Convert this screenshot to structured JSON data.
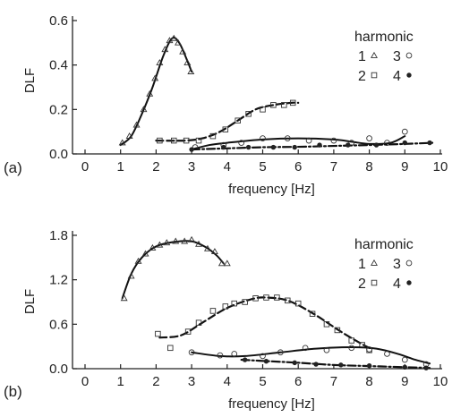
{
  "chart_data": [
    {
      "type": "scatter",
      "panel_label": "(a)",
      "xlabel": "frequency [Hz]",
      "ylabel": "DLF",
      "xlim": [
        0,
        10
      ],
      "ylim": [
        0,
        0.62
      ],
      "x_ticks": [
        0,
        1,
        2,
        3,
        4,
        5,
        6,
        7,
        8,
        9,
        10
      ],
      "y_ticks": [
        0.0,
        0.2,
        0.4,
        0.6
      ],
      "y_tick_labels": [
        "0.0",
        "0.2",
        "0.4",
        "0.6"
      ],
      "legend": {
        "title": "harmonic",
        "position": "top-right",
        "entries": [
          {
            "label": "1",
            "marker": "triangle"
          },
          {
            "label": "3",
            "marker": "open-circle"
          },
          {
            "label": "2",
            "marker": "open-square"
          },
          {
            "label": "4",
            "marker": "filled-circle"
          }
        ]
      },
      "series": [
        {
          "marker": "triangle",
          "line": "solid",
          "points": [
            [
              1.05,
              0.05
            ],
            [
              1.25,
              0.08
            ],
            [
              1.45,
              0.13
            ],
            [
              1.65,
              0.2
            ],
            [
              1.82,
              0.27
            ],
            [
              1.97,
              0.34
            ],
            [
              2.1,
              0.41
            ],
            [
              2.25,
              0.47
            ],
            [
              2.38,
              0.51
            ],
            [
              2.5,
              0.52
            ],
            [
              2.62,
              0.5
            ],
            [
              2.75,
              0.46
            ],
            [
              2.88,
              0.41
            ],
            [
              2.98,
              0.37
            ]
          ],
          "curve": [
            [
              1.0,
              0.04
            ],
            [
              1.3,
              0.08
            ],
            [
              1.6,
              0.18
            ],
            [
              1.9,
              0.3
            ],
            [
              2.2,
              0.44
            ],
            [
              2.45,
              0.52
            ],
            [
              2.65,
              0.5
            ],
            [
              2.85,
              0.43
            ],
            [
              3.0,
              0.37
            ]
          ]
        },
        {
          "marker": "open-square",
          "line": "dashed",
          "points": [
            [
              2.1,
              0.06
            ],
            [
              2.5,
              0.06
            ],
            [
              2.85,
              0.06
            ],
            [
              3.2,
              0.06
            ],
            [
              3.6,
              0.08
            ],
            [
              3.95,
              0.11
            ],
            [
              4.3,
              0.15
            ],
            [
              4.6,
              0.18
            ],
            [
              5.0,
              0.2
            ],
            [
              5.3,
              0.22
            ],
            [
              5.6,
              0.22
            ],
            [
              5.85,
              0.23
            ]
          ],
          "curve": [
            [
              2.0,
              0.06
            ],
            [
              2.8,
              0.06
            ],
            [
              3.3,
              0.07
            ],
            [
              3.8,
              0.1
            ],
            [
              4.3,
              0.15
            ],
            [
              4.8,
              0.2
            ],
            [
              5.3,
              0.22
            ],
            [
              5.8,
              0.23
            ],
            [
              6.0,
              0.23
            ]
          ]
        },
        {
          "marker": "open-circle",
          "line": "solid",
          "points": [
            [
              3.1,
              0.03
            ],
            [
              3.9,
              0.04
            ],
            [
              4.4,
              0.05
            ],
            [
              5.0,
              0.07
            ],
            [
              5.7,
              0.07
            ],
            [
              6.3,
              0.06
            ],
            [
              7.0,
              0.06
            ],
            [
              7.5,
              0.05
            ],
            [
              8.0,
              0.07
            ],
            [
              8.5,
              0.05
            ],
            [
              9.0,
              0.1
            ]
          ],
          "curve": [
            [
              3.0,
              0.02
            ],
            [
              3.5,
              0.04
            ],
            [
              4.0,
              0.05
            ],
            [
              5.0,
              0.065
            ],
            [
              6.0,
              0.07
            ],
            [
              7.0,
              0.065
            ],
            [
              7.5,
              0.055
            ],
            [
              8.0,
              0.045
            ],
            [
              8.6,
              0.05
            ],
            [
              9.0,
              0.08
            ]
          ]
        },
        {
          "marker": "filled-circle",
          "line": "dashdot",
          "points": [
            [
              3.0,
              0.02
            ],
            [
              3.9,
              0.03
            ],
            [
              4.6,
              0.03
            ],
            [
              5.3,
              0.03
            ],
            [
              5.9,
              0.03
            ],
            [
              6.6,
              0.04
            ],
            [
              7.4,
              0.04
            ],
            [
              8.2,
              0.04
            ],
            [
              9.0,
              0.05
            ],
            [
              9.7,
              0.05
            ]
          ],
          "curve": [
            [
              3.0,
              0.02
            ],
            [
              4.0,
              0.025
            ],
            [
              5.0,
              0.03
            ],
            [
              6.0,
              0.032
            ],
            [
              7.0,
              0.036
            ],
            [
              8.0,
              0.04
            ],
            [
              9.0,
              0.045
            ],
            [
              9.8,
              0.05
            ]
          ]
        }
      ]
    },
    {
      "type": "scatter",
      "panel_label": "(b)",
      "xlabel": "frequency [Hz]",
      "ylabel": "DLF",
      "xlim": [
        0,
        10
      ],
      "ylim": [
        0,
        1.86
      ],
      "x_ticks": [
        0,
        1,
        2,
        3,
        4,
        5,
        6,
        7,
        8,
        9,
        10
      ],
      "y_ticks": [
        0.0,
        0.6,
        1.2,
        1.8
      ],
      "y_tick_labels": [
        "0.0",
        "0.6",
        "1.2",
        "1.8"
      ],
      "legend": {
        "title": "harmonic",
        "position": "top-right",
        "entries": [
          {
            "label": "1",
            "marker": "triangle"
          },
          {
            "label": "3",
            "marker": "open-circle"
          },
          {
            "label": "2",
            "marker": "open-square"
          },
          {
            "label": "4",
            "marker": "filled-circle"
          }
        ]
      },
      "series": [
        {
          "marker": "triangle",
          "line": "solid",
          "points": [
            [
              1.1,
              0.95
            ],
            [
              1.3,
              1.25
            ],
            [
              1.5,
              1.45
            ],
            [
              1.7,
              1.55
            ],
            [
              1.9,
              1.63
            ],
            [
              2.1,
              1.67
            ],
            [
              2.3,
              1.7
            ],
            [
              2.55,
              1.72
            ],
            [
              2.8,
              1.72
            ],
            [
              3.0,
              1.74
            ],
            [
              3.2,
              1.68
            ],
            [
              3.45,
              1.62
            ],
            [
              3.65,
              1.58
            ],
            [
              3.85,
              1.42
            ],
            [
              4.0,
              1.42
            ]
          ],
          "curve": [
            [
              1.05,
              0.95
            ],
            [
              1.3,
              1.28
            ],
            [
              1.6,
              1.5
            ],
            [
              2.0,
              1.65
            ],
            [
              2.5,
              1.71
            ],
            [
              3.0,
              1.72
            ],
            [
              3.4,
              1.64
            ],
            [
              3.7,
              1.53
            ],
            [
              3.9,
              1.42
            ]
          ]
        },
        {
          "marker": "open-square",
          "line": "dashed",
          "points": [
            [
              2.05,
              0.47
            ],
            [
              2.4,
              0.28
            ],
            [
              2.9,
              0.5
            ],
            [
              3.2,
              0.62
            ],
            [
              3.6,
              0.78
            ],
            [
              3.95,
              0.84
            ],
            [
              4.2,
              0.88
            ],
            [
              4.5,
              0.9
            ],
            [
              4.8,
              0.95
            ],
            [
              5.1,
              0.96
            ],
            [
              5.4,
              0.96
            ],
            [
              5.7,
              0.92
            ],
            [
              6.0,
              0.88
            ],
            [
              6.4,
              0.74
            ],
            [
              6.8,
              0.6
            ],
            [
              7.1,
              0.52
            ],
            [
              7.5,
              0.38
            ],
            [
              7.8,
              0.32
            ],
            [
              8.0,
              0.25
            ]
          ],
          "curve": [
            [
              2.1,
              0.42
            ],
            [
              2.7,
              0.45
            ],
            [
              3.3,
              0.62
            ],
            [
              4.0,
              0.82
            ],
            [
              4.7,
              0.94
            ],
            [
              5.1,
              0.96
            ],
            [
              5.7,
              0.92
            ],
            [
              6.4,
              0.75
            ],
            [
              7.2,
              0.5
            ],
            [
              7.8,
              0.33
            ],
            [
              8.05,
              0.27
            ]
          ]
        },
        {
          "marker": "open-circle",
          "line": "solid",
          "points": [
            [
              3.0,
              0.22
            ],
            [
              3.8,
              0.18
            ],
            [
              4.2,
              0.2
            ],
            [
              5.0,
              0.17
            ],
            [
              5.5,
              0.22
            ],
            [
              6.2,
              0.28
            ],
            [
              6.8,
              0.25
            ],
            [
              7.5,
              0.28
            ],
            [
              8.0,
              0.26
            ],
            [
              8.5,
              0.2
            ],
            [
              9.0,
              0.12
            ],
            [
              9.6,
              0.06
            ]
          ],
          "curve": [
            [
              3.0,
              0.22
            ],
            [
              3.8,
              0.17
            ],
            [
              4.5,
              0.17
            ],
            [
              5.5,
              0.22
            ],
            [
              6.5,
              0.27
            ],
            [
              7.5,
              0.29
            ],
            [
              8.2,
              0.27
            ],
            [
              8.8,
              0.2
            ],
            [
              9.3,
              0.12
            ],
            [
              9.7,
              0.07
            ]
          ]
        },
        {
          "marker": "filled-circle",
          "line": "dashdot",
          "points": [
            [
              4.5,
              0.12
            ],
            [
              5.1,
              0.1
            ],
            [
              5.9,
              0.08
            ],
            [
              6.5,
              0.06
            ],
            [
              7.2,
              0.05
            ],
            [
              8.0,
              0.04
            ],
            [
              9.0,
              0.02
            ],
            [
              9.6,
              0.01
            ]
          ],
          "curve": [
            [
              4.4,
              0.12
            ],
            [
              5.2,
              0.1
            ],
            [
              6.0,
              0.08
            ],
            [
              7.0,
              0.05
            ],
            [
              8.0,
              0.035
            ],
            [
              9.0,
              0.02
            ],
            [
              9.7,
              0.01
            ]
          ]
        }
      ]
    }
  ]
}
